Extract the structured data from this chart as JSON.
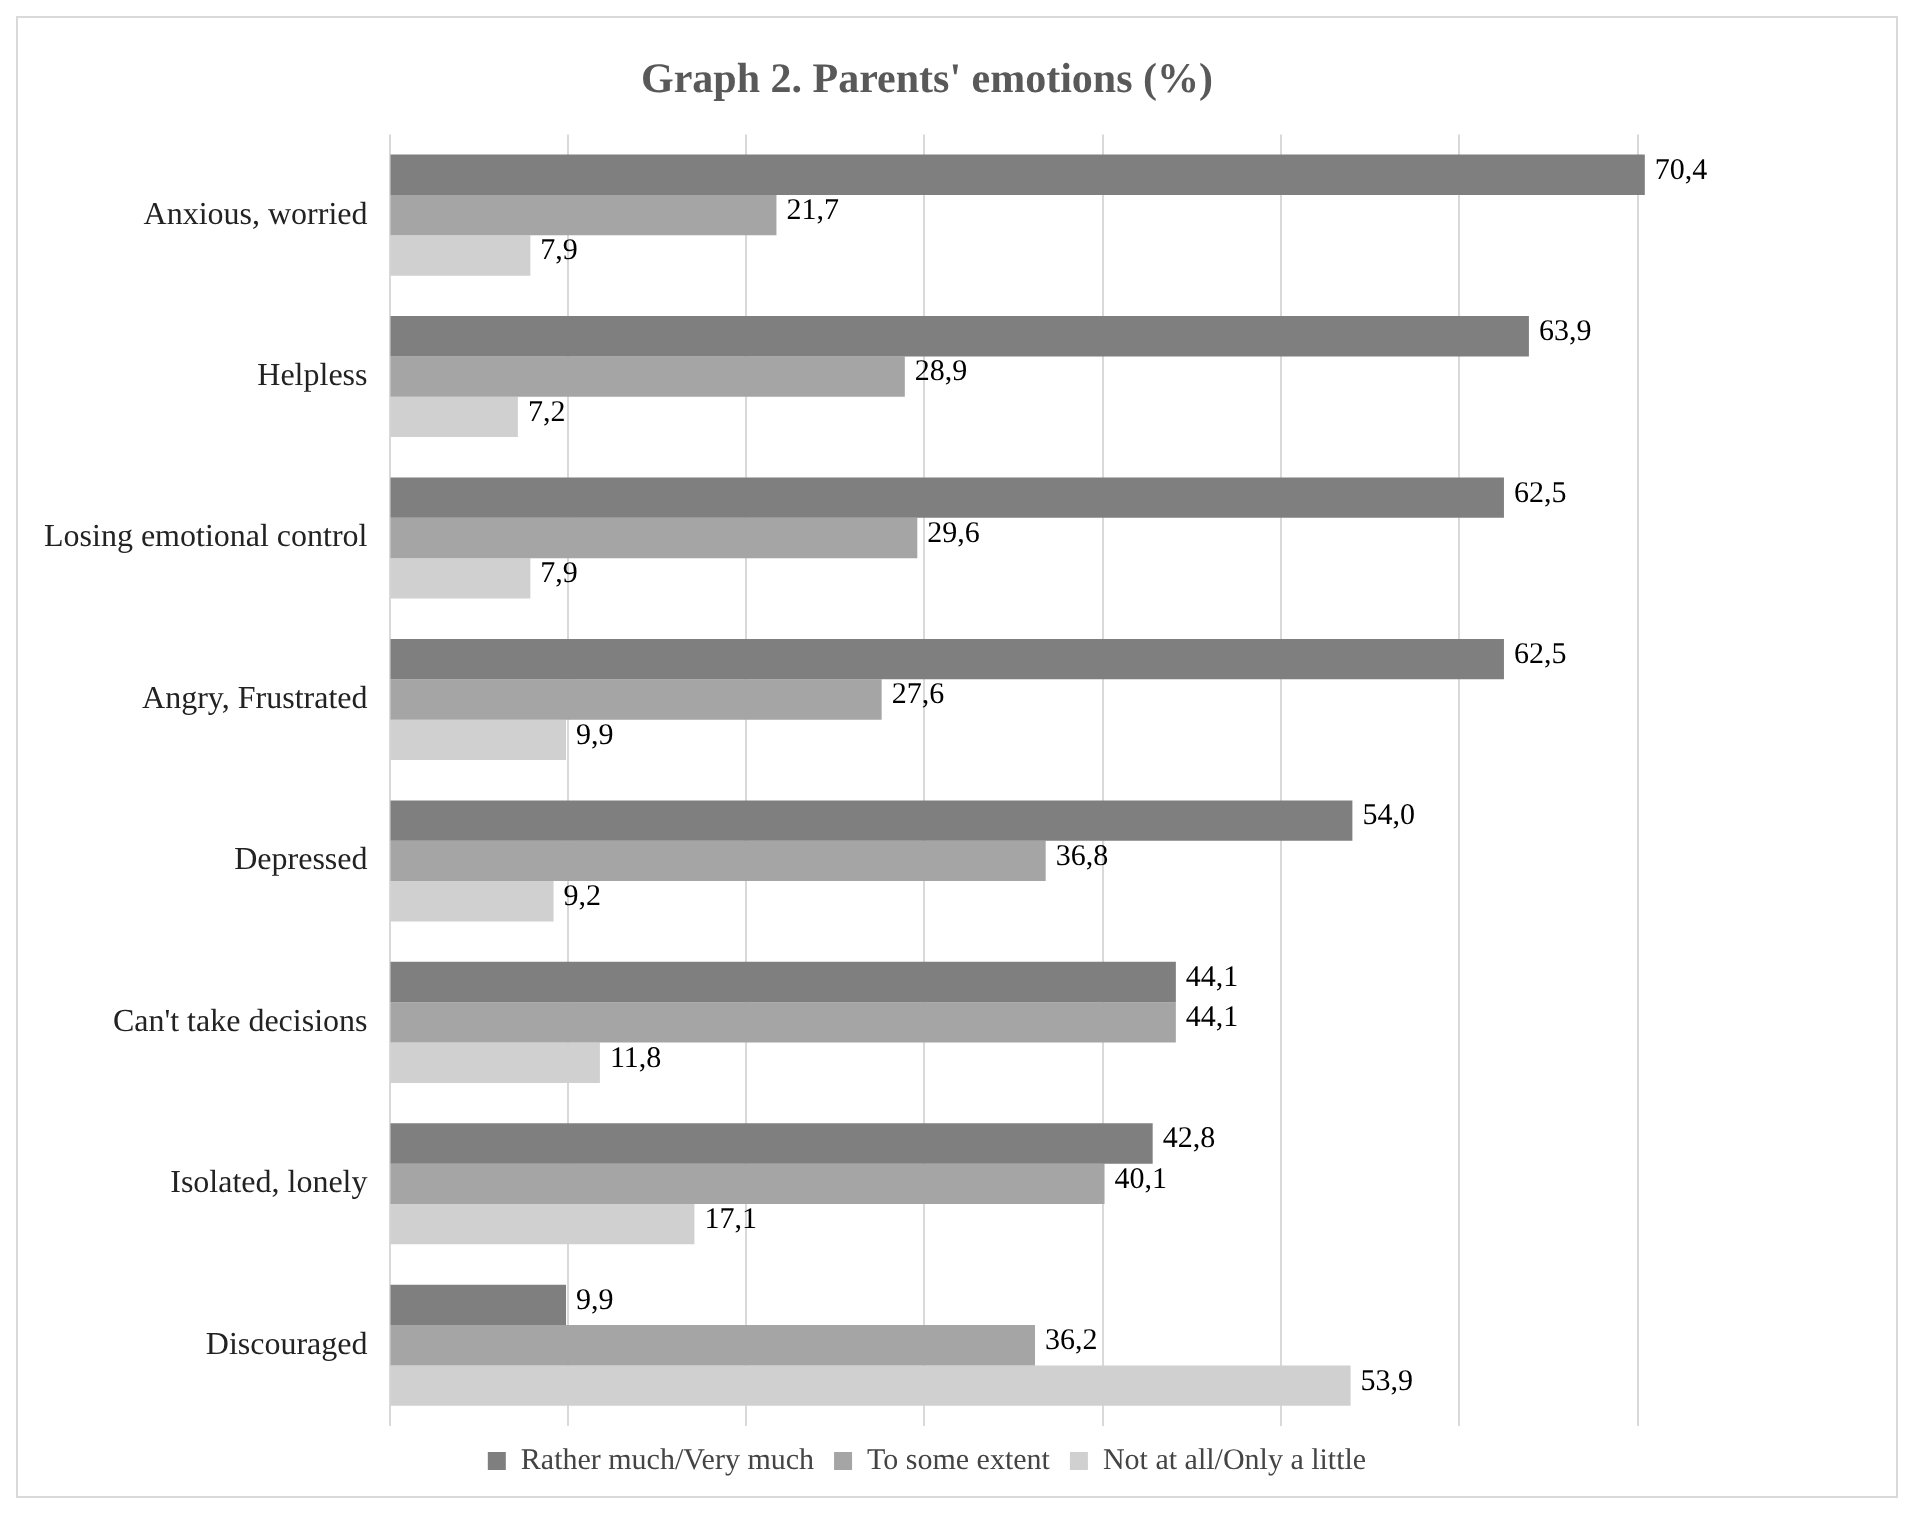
{
  "chart_data": {
    "type": "bar",
    "orientation": "horizontal",
    "title": "Graph 2. Parents' emotions (%)",
    "categories": [
      "Anxious, worried",
      "Helpless",
      "Losing emotional control",
      "Angry, Frustrated",
      "Depressed",
      "Can't take decisions",
      "Isolated, lonely",
      "Discouraged"
    ],
    "series": [
      {
        "name": "Rather much/Very much",
        "color": "#7f7f7f",
        "values": [
          70.4,
          63.9,
          62.5,
          62.5,
          54.0,
          44.1,
          42.8,
          9.9
        ],
        "value_labels": [
          "70,4",
          "63,9",
          "62,5",
          "62,5",
          "54,0",
          "44,1",
          "42,8",
          "9,9"
        ]
      },
      {
        "name": "To some extent",
        "color": "#a5a5a5",
        "values": [
          21.7,
          28.9,
          29.6,
          27.6,
          36.8,
          44.1,
          40.1,
          36.2
        ],
        "value_labels": [
          "21,7",
          "28,9",
          "29,6",
          "27,6",
          "36,8",
          "44,1",
          "40,1",
          "36,2"
        ]
      },
      {
        "name": "Not at all/Only a little",
        "color": "#d0d0d0",
        "values": [
          7.9,
          7.2,
          7.9,
          9.9,
          9.2,
          11.8,
          17.1,
          53.9
        ],
        "value_labels": [
          "7,9",
          "7,2",
          "7,9",
          "9,9",
          "9,2",
          "11,8",
          "17,1",
          "53,9"
        ]
      }
    ],
    "xticks": [
      {
        "value": 0,
        "label": null
      },
      {
        "value": 10,
        "label": null
      },
      {
        "value": 20,
        "label": null
      },
      {
        "value": 30,
        "label": null
      },
      {
        "value": 40,
        "label": null
      },
      {
        "value": 50,
        "label": null
      },
      {
        "value": 60,
        "label": null
      },
      {
        "value": 70,
        "label": null
      }
    ],
    "tick_labels": "y",
    "grid": "x",
    "legend": "bottom"
  }
}
